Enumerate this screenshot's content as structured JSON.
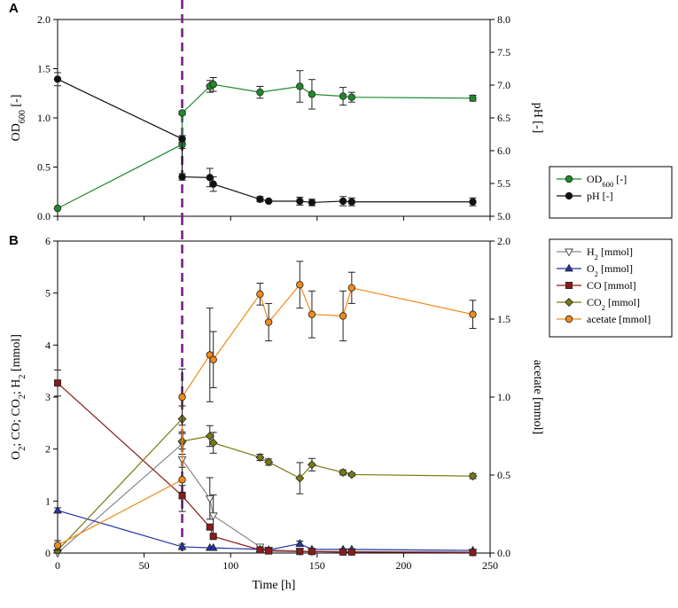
{
  "chart_data": [
    {
      "type": "scatter",
      "panel_label": "A",
      "xlim": [
        0,
        250
      ],
      "x_ticks": [
        "0",
        "50",
        "100",
        "150",
        "200",
        "250"
      ],
      "ylim_left": [
        0,
        2
      ],
      "ylim_right": [
        5,
        8
      ],
      "y_ticks_left": [
        "0.0",
        "0.5",
        "1.0",
        "1.5",
        "2.0"
      ],
      "y_ticks_right": [
        "5.0",
        "5.5",
        "6.0",
        "6.5",
        "7.0",
        "7.5",
        "8.0"
      ],
      "ylabel_left": {
        "main": "OD",
        "sub": "600",
        "tail": " [-]"
      },
      "ylabel_right": "pH [-]",
      "event_line_x": 72,
      "legend": [
        {
          "key": "od",
          "label_main": "OD",
          "label_sub": "600",
          "label_tail": " [-]"
        },
        {
          "key": "ph",
          "label_main": "pH [-]",
          "label_sub": "",
          "label_tail": ""
        }
      ],
      "series": [
        {
          "key": "od",
          "name": "OD600 [-]",
          "axis": "left",
          "color": "#1f8a2a",
          "marker": "circle",
          "points": [
            {
              "x": 0,
              "y": 0.08
            },
            {
              "x": 72,
              "y": 0.73,
              "err": 0.04
            },
            {
              "x": 72,
              "y": 1.05,
              "err": 0.02
            },
            {
              "x": 88,
              "y": 1.32,
              "err": 0.06
            },
            {
              "x": 90,
              "y": 1.34,
              "err": 0.07
            },
            {
              "x": 117,
              "y": 1.26,
              "err": 0.06
            },
            {
              "x": 140,
              "y": 1.32,
              "err": 0.16
            },
            {
              "x": 147,
              "y": 1.24,
              "err": 0.15
            },
            {
              "x": 165,
              "y": 1.22,
              "err": 0.09
            },
            {
              "x": 170,
              "y": 1.21,
              "err": 0.05
            },
            {
              "x": 240,
              "y": 1.2,
              "err": 0.03
            }
          ]
        },
        {
          "key": "ph",
          "name": "pH [-]",
          "axis": "right",
          "color": "#111111",
          "marker": "circle",
          "points": [
            {
              "x": 0,
              "y": 7.09,
              "err": 0.1
            },
            {
              "x": 72,
              "y": 6.18,
              "err": 0.05
            },
            {
              "x": 72,
              "y": 5.6,
              "err": 0.05
            },
            {
              "x": 88,
              "y": 5.59,
              "err": 0.14
            },
            {
              "x": 90,
              "y": 5.49,
              "err": 0.11
            },
            {
              "x": 117,
              "y": 5.26,
              "err": 0.04
            },
            {
              "x": 122,
              "y": 5.23,
              "err": 0.02
            },
            {
              "x": 140,
              "y": 5.23,
              "err": 0.06
            },
            {
              "x": 147,
              "y": 5.21,
              "err": 0.05
            },
            {
              "x": 165,
              "y": 5.23,
              "err": 0.07
            },
            {
              "x": 170,
              "y": 5.22,
              "err": 0.06
            },
            {
              "x": 240,
              "y": 5.22,
              "err": 0.06
            }
          ]
        }
      ]
    },
    {
      "type": "scatter",
      "panel_label": "B",
      "xlabel": "Time [h]",
      "xlim": [
        0,
        250
      ],
      "x_ticks": [
        "0",
        "50",
        "100",
        "150",
        "200",
        "250"
      ],
      "ylim_left": [
        0,
        6
      ],
      "ylim_right": [
        0,
        2
      ],
      "y_ticks_left": [
        "0",
        "1",
        "2",
        "3",
        "4",
        "5",
        "6"
      ],
      "y_ticks_right": [
        "0.0",
        "0.5",
        "1.0",
        "1.5",
        "2.0"
      ],
      "ylabel_left": "O2; CO; CO2; H2 [mmol]",
      "ylabel_right": "acetate [mmol]",
      "event_line_x": 72,
      "legend": [
        {
          "key": "h2",
          "label_main": "H",
          "label_sub": "2",
          "label_tail": " [mmol]"
        },
        {
          "key": "o2",
          "label_main": "O",
          "label_sub": "2",
          "label_tail": " [mmol]"
        },
        {
          "key": "co",
          "label_main": "CO [mmol]",
          "label_sub": "",
          "label_tail": ""
        },
        {
          "key": "co2",
          "label_main": "CO",
          "label_sub": "2",
          "label_tail": " [mmol]"
        },
        {
          "key": "acetate",
          "label_main": "acetate [mmol]",
          "label_sub": "",
          "label_tail": ""
        }
      ],
      "series": [
        {
          "key": "h2",
          "name": "H2 [mmol]",
          "axis": "left",
          "color": "#8a8a8a",
          "marker": "triangle-down",
          "points": [
            {
              "x": 0,
              "y": 0.0
            },
            {
              "x": 72,
              "y": 2.1,
              "err": 0.2
            },
            {
              "x": 72,
              "y": 1.8,
              "err": 0.5
            },
            {
              "x": 88,
              "y": 1.05,
              "err": 0.4
            },
            {
              "x": 90,
              "y": 0.72,
              "err": 0.4
            },
            {
              "x": 117,
              "y": 0.12,
              "err": 0.05
            },
            {
              "x": 122,
              "y": 0.06,
              "err": 0.03
            },
            {
              "x": 140,
              "y": 0.04
            },
            {
              "x": 147,
              "y": 0.03
            },
            {
              "x": 165,
              "y": 0.03
            },
            {
              "x": 170,
              "y": 0.03
            },
            {
              "x": 240,
              "y": 0.02
            }
          ]
        },
        {
          "key": "o2",
          "name": "O2 [mmol]",
          "axis": "left",
          "color": "#2233aa",
          "marker": "triangle-up",
          "points": [
            {
              "x": 0,
              "y": 0.82,
              "err": 0.05
            },
            {
              "x": 72,
              "y": 0.12,
              "err": 0.05
            },
            {
              "x": 88,
              "y": 0.1
            },
            {
              "x": 90,
              "y": 0.1
            },
            {
              "x": 117,
              "y": 0.07
            },
            {
              "x": 122,
              "y": 0.06
            },
            {
              "x": 140,
              "y": 0.18,
              "err": 0.05
            },
            {
              "x": 147,
              "y": 0.07
            },
            {
              "x": 165,
              "y": 0.07
            },
            {
              "x": 170,
              "y": 0.07
            },
            {
              "x": 240,
              "y": 0.05
            }
          ]
        },
        {
          "key": "co",
          "name": "CO [mmol]",
          "axis": "left",
          "color": "#8b1a1a",
          "marker": "square",
          "points": [
            {
              "x": 0,
              "y": 3.27,
              "err": 0.25
            },
            {
              "x": 72,
              "y": 1.1,
              "err": 0.3
            },
            {
              "x": 88,
              "y": 0.5
            },
            {
              "x": 90,
              "y": 0.32
            },
            {
              "x": 117,
              "y": 0.06
            },
            {
              "x": 122,
              "y": 0.04
            },
            {
              "x": 140,
              "y": 0.03
            },
            {
              "x": 147,
              "y": 0.03
            },
            {
              "x": 165,
              "y": 0.02
            },
            {
              "x": 170,
              "y": 0.02
            },
            {
              "x": 240,
              "y": 0.01
            }
          ]
        },
        {
          "key": "co2",
          "name": "CO2 [mmol]",
          "axis": "left",
          "color": "#7a7a10",
          "marker": "diamond",
          "points": [
            {
              "x": 0,
              "y": 0.05
            },
            {
              "x": 72,
              "y": 2.58,
              "err": 0.25
            },
            {
              "x": 72,
              "y": 2.15,
              "err": 0.15
            },
            {
              "x": 88,
              "y": 2.25,
              "err": 0.2
            },
            {
              "x": 90,
              "y": 2.12,
              "err": 0.2
            },
            {
              "x": 117,
              "y": 1.84,
              "err": 0.06
            },
            {
              "x": 122,
              "y": 1.75,
              "err": 0.06
            },
            {
              "x": 140,
              "y": 1.44,
              "err": 0.3
            },
            {
              "x": 147,
              "y": 1.7,
              "err": 0.12
            },
            {
              "x": 165,
              "y": 1.55,
              "err": 0.05
            },
            {
              "x": 170,
              "y": 1.51,
              "err": 0.03
            },
            {
              "x": 240,
              "y": 1.48,
              "err": 0.05
            }
          ]
        },
        {
          "key": "acetate",
          "name": "acetate [mmol]",
          "axis": "right",
          "color": "#f08a1a",
          "marker": "circle",
          "points": [
            {
              "x": 0,
              "y": 0.05,
              "err": 0.03
            },
            {
              "x": 72,
              "y": 0.47,
              "err": 0.08
            },
            {
              "x": 72,
              "y": 1.0,
              "err": 0.18
            },
            {
              "x": 88,
              "y": 1.27,
              "err": 0.3
            },
            {
              "x": 90,
              "y": 1.24,
              "err": 0.18
            },
            {
              "x": 117,
              "y": 1.66,
              "err": 0.07
            },
            {
              "x": 122,
              "y": 1.48,
              "err": 0.12
            },
            {
              "x": 140,
              "y": 1.72,
              "err": 0.15
            },
            {
              "x": 147,
              "y": 1.53,
              "err": 0.15
            },
            {
              "x": 165,
              "y": 1.52,
              "err": 0.16
            },
            {
              "x": 170,
              "y": 1.7,
              "err": 0.1
            },
            {
              "x": 240,
              "y": 1.53,
              "err": 0.09
            }
          ]
        }
      ]
    }
  ]
}
